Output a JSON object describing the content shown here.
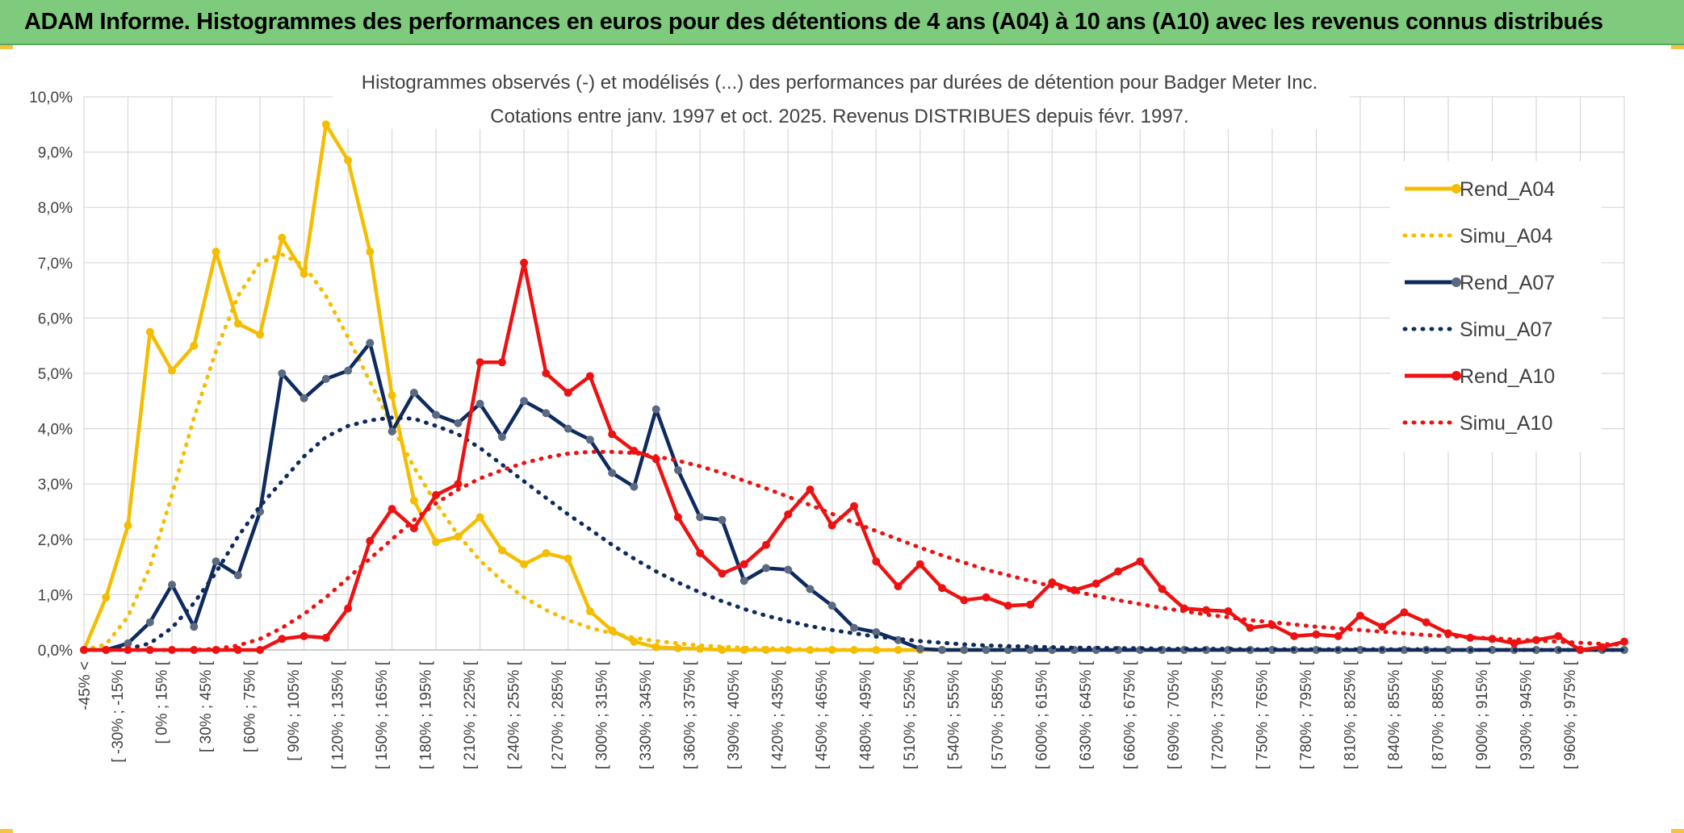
{
  "header": {
    "title": "ADAM Informe. Histogrammes des performances en euros pour des détentions de 4 ans (A04) à 10 ans (A10) avec les revenus connus distribués"
  },
  "chart_data": {
    "type": "line",
    "title": "Histogrammes observés (-) et modélisés (...) des performances par durées de détention pour Badger Meter Inc.",
    "subtitle": "Cotations entre janv. 1997 et oct. 2025. Revenus DISTRIBUES depuis févr. 1997.",
    "xlabel": "",
    "ylabel": "",
    "ylim": [
      0,
      10
    ],
    "y_ticks": [
      "0,0%",
      "1,0%",
      "2,0%",
      "3,0%",
      "4,0%",
      "5,0%",
      "6,0%",
      "7,0%",
      "8,0%",
      "9,0%",
      "10,0%"
    ],
    "x_tick_labels": [
      "-45% <",
      "[ -30% ; -15% [",
      "[ 0% ; 15% [",
      "[ 30% ; 45% [",
      "[ 60% ; 75% [",
      "[ 90% ; 105% [",
      "[ 120% ; 135% [",
      "[ 150% ; 165% [",
      "[ 180% ; 195% [",
      "[ 210% ; 225% [",
      "[ 240% ; 255% [",
      "[ 270% ; 285% [",
      "[ 300% ; 315% [",
      "[ 330% ; 345% [",
      "[ 360% ; 375% [",
      "[ 390% ; 405% [",
      "[ 420% ; 435% [",
      "[ 450% ; 465% [",
      "[ 480% ; 495% [",
      "[ 510% ; 525% [",
      "[ 540% ; 555% [",
      "[ 570% ; 585% [",
      "[ 600% ; 615% [",
      "[ 630% ; 645% [",
      "[ 660% ; 675% [",
      "[ 690% ; 705% [",
      "[ 720% ; 735% [",
      "[ 750% ; 765% [",
      "[ 780% ; 795% [",
      "[ 810% ; 825% [",
      "[ 840% ; 855% [",
      "[ 870% ; 885% [",
      "[ 900% ; 915% [",
      "[ 930% ; 945% [",
      "[ 960% ; 975% ["
    ],
    "grid": true,
    "legend_position": "right",
    "series": [
      {
        "name": "Rend_A04",
        "color": "#f5bd00",
        "style": "solid",
        "markers": true,
        "values": [
          0,
          0.95,
          2.25,
          5.75,
          5.05,
          5.5,
          7.2,
          5.9,
          5.7,
          7.45,
          6.8,
          9.5,
          8.85,
          7.2,
          4.6,
          2.7,
          1.95,
          2.05,
          2.4,
          1.8,
          1.55,
          1.75,
          1.65,
          0.7,
          0.35,
          0.15,
          0.05,
          0.03,
          0.02,
          0,
          0,
          0,
          0,
          0,
          0,
          0,
          0,
          0,
          0,
          0,
          0
        ]
      },
      {
        "name": "Simu_A04",
        "color": "#f5bd00",
        "style": "dotted",
        "markers": false,
        "values": [
          0,
          0.1,
          0.6,
          1.5,
          2.8,
          4.2,
          5.4,
          6.4,
          7.0,
          7.15,
          6.95,
          6.4,
          5.65,
          4.85,
          4.05,
          3.3,
          2.65,
          2.08,
          1.62,
          1.25,
          0.95,
          0.72,
          0.54,
          0.4,
          0.3,
          0.22,
          0.16,
          0.12,
          0.08,
          0.06,
          0.04,
          0.03,
          0.02,
          0.01,
          0.01,
          0,
          0,
          0,
          0,
          0,
          0
        ]
      },
      {
        "name": "Rend_A07",
        "color": "#0e2a5e",
        "style": "solid",
        "markers": true,
        "values": [
          0,
          0,
          0.12,
          0.5,
          1.18,
          0.42,
          1.6,
          1.35,
          2.5,
          5.0,
          4.55,
          4.9,
          5.05,
          5.55,
          3.95,
          4.65,
          4.25,
          4.1,
          4.45,
          3.85,
          4.5,
          4.28,
          4.0,
          3.8,
          3.2,
          2.95,
          4.35,
          3.25,
          2.4,
          2.35,
          1.25,
          1.48,
          1.45,
          1.1,
          0.8,
          0.4,
          0.32,
          0.18,
          0.02,
          0,
          0
        ]
      },
      {
        "name": "Simu_A07",
        "color": "#0e2a5e",
        "style": "dotted",
        "markers": false,
        "values": [
          0,
          0,
          0.02,
          0.12,
          0.4,
          0.85,
          1.4,
          2.05,
          2.6,
          3.05,
          3.5,
          3.85,
          4.05,
          4.15,
          4.2,
          4.18,
          4.05,
          3.9,
          3.65,
          3.35,
          3.05,
          2.75,
          2.45,
          2.18,
          1.9,
          1.65,
          1.42,
          1.22,
          1.04,
          0.88,
          0.74,
          0.62,
          0.52,
          0.43,
          0.36,
          0.3,
          0.24,
          0.2,
          0.16,
          0.13,
          0.1
        ]
      },
      {
        "name": "Rend_A10",
        "color": "#ee1111",
        "style": "solid",
        "markers": true,
        "values": [
          0,
          0,
          0,
          0,
          0,
          0,
          0,
          0,
          0,
          0.2,
          0.25,
          0.22,
          0.75,
          1.97,
          2.55,
          2.2,
          2.8,
          3.0,
          5.2,
          5.2,
          7.0,
          5.0,
          4.65,
          4.95,
          3.9,
          3.6,
          3.45,
          2.4,
          1.75,
          1.38,
          1.55,
          1.9,
          2.45,
          2.9,
          2.25,
          2.6,
          1.6,
          1.15,
          1.55,
          1.12,
          0.9
        ]
      },
      {
        "name": "Simu_A10",
        "color": "#ee1111",
        "style": "dotted",
        "markers": false,
        "values": [
          0,
          0,
          0,
          0,
          0,
          0,
          0.02,
          0.08,
          0.2,
          0.4,
          0.65,
          0.95,
          1.3,
          1.65,
          2.0,
          2.35,
          2.65,
          2.9,
          3.1,
          3.25,
          3.38,
          3.48,
          3.55,
          3.58,
          3.58,
          3.56,
          3.5,
          3.42,
          3.32,
          3.2,
          3.06,
          2.92,
          2.77,
          2.62,
          2.46,
          2.3,
          2.15,
          2.0,
          1.85,
          1.71,
          1.58
        ]
      }
    ],
    "tail": {
      "Rend_A04": [
        0,
        0,
        0,
        0,
        0,
        0,
        0,
        0,
        0,
        0,
        0,
        0,
        0,
        0,
        0,
        0,
        0,
        0,
        0,
        0,
        0,
        0,
        0,
        0,
        0,
        0,
        0,
        0,
        0,
        0
      ],
      "Simu_A04": [
        0,
        0,
        0,
        0,
        0,
        0,
        0,
        0,
        0,
        0,
        0,
        0,
        0,
        0,
        0,
        0,
        0,
        0,
        0,
        0,
        0,
        0,
        0,
        0,
        0,
        0,
        0,
        0,
        0,
        0
      ],
      "Rend_A07": [
        0,
        0,
        0,
        0,
        0,
        0,
        0,
        0,
        0,
        0,
        0,
        0,
        0,
        0,
        0,
        0,
        0,
        0,
        0,
        0,
        0,
        0,
        0,
        0,
        0,
        0,
        0,
        0,
        0,
        0
      ],
      "Simu_A07": [
        0.08,
        0.07,
        0.06,
        0.05,
        0.04,
        0.04,
        0.03,
        0.03,
        0.02,
        0.02,
        0.02,
        0.02,
        0.01,
        0.01,
        0.01,
        0.01,
        0.01,
        0.01,
        0.01,
        0.01,
        0.01,
        0,
        0,
        0,
        0,
        0,
        0,
        0,
        0,
        0
      ],
      "Rend_A10": [
        0.95,
        0.8,
        0.82,
        1.22,
        1.08,
        1.2,
        1.42,
        1.6,
        1.1,
        0.75,
        0.72,
        0.7,
        0.4,
        0.45,
        0.25,
        0.28,
        0.25,
        0.62,
        0.42,
        0.68,
        0.5,
        0.3,
        0.22,
        0.2,
        0.12,
        0.18,
        0.25,
        0,
        0.05,
        0.15
      ],
      "Simu_A10": [
        1.45,
        1.35,
        1.25,
        1.15,
        1.06,
        0.98,
        0.9,
        0.83,
        0.76,
        0.7,
        0.64,
        0.59,
        0.54,
        0.5,
        0.46,
        0.42,
        0.39,
        0.36,
        0.33,
        0.3,
        0.27,
        0.25,
        0.23,
        0.21,
        0.19,
        0.17,
        0.15,
        0.13,
        0.11,
        0.09
      ]
    }
  }
}
